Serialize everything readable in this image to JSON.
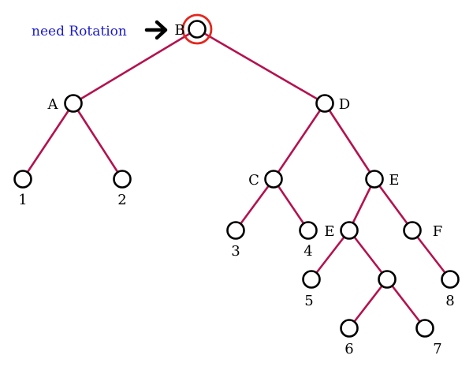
{
  "annotation": {
    "text": "need Rotation",
    "color": "#1a1acc"
  },
  "colors": {
    "edge": "#b4124e",
    "highlight": "#e3271e",
    "node_stroke": "#000000"
  },
  "tree": {
    "nodes": [
      {
        "id": "root",
        "label": "B",
        "highlighted": true
      },
      {
        "id": "a",
        "label": "A"
      },
      {
        "id": "d",
        "label": "D"
      },
      {
        "id": "leaf1",
        "label": "1"
      },
      {
        "id": "leaf2",
        "label": "2"
      },
      {
        "id": "c",
        "label": "C"
      },
      {
        "id": "e1",
        "label": "E"
      },
      {
        "id": "leaf3",
        "label": "3"
      },
      {
        "id": "leaf4",
        "label": "4"
      },
      {
        "id": "e2",
        "label": "E"
      },
      {
        "id": "f",
        "label": "F"
      },
      {
        "id": "leaf5",
        "label": "5"
      },
      {
        "id": "inner",
        "label": ""
      },
      {
        "id": "leaf8",
        "label": "8"
      },
      {
        "id": "leaf6",
        "label": "6"
      },
      {
        "id": "leaf7",
        "label": "7"
      }
    ],
    "edges": [
      [
        "root",
        "a"
      ],
      [
        "root",
        "d"
      ],
      [
        "a",
        "leaf1"
      ],
      [
        "a",
        "leaf2"
      ],
      [
        "d",
        "c"
      ],
      [
        "d",
        "e1"
      ],
      [
        "c",
        "leaf3"
      ],
      [
        "c",
        "leaf4"
      ],
      [
        "e1",
        "e2"
      ],
      [
        "e1",
        "f"
      ],
      [
        "e2",
        "leaf5"
      ],
      [
        "e2",
        "inner"
      ],
      [
        "f",
        "leaf8"
      ],
      [
        "inner",
        "leaf6"
      ],
      [
        "inner",
        "leaf7"
      ]
    ]
  }
}
